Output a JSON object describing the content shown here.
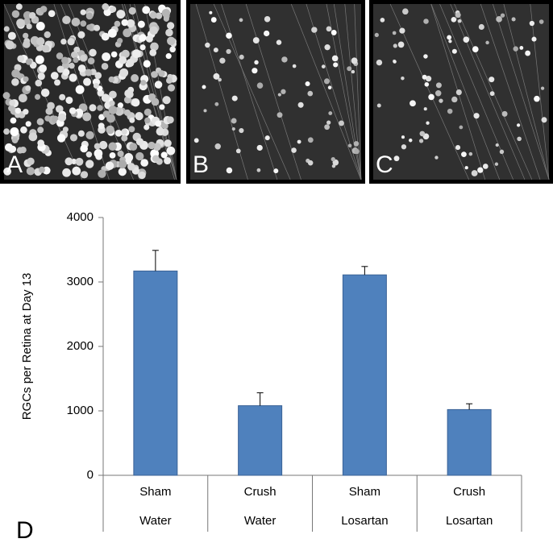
{
  "panels": {
    "labels": [
      "A",
      "B",
      "C"
    ]
  },
  "chart_data": {
    "type": "bar",
    "panel_label": "D",
    "ylabel": "RGCs per Retina at Day 13",
    "categories": [
      "Sham",
      "Crush",
      "Sham",
      "Crush"
    ],
    "subcategories": [
      "Water",
      "Water",
      "Losartan",
      "Losartan"
    ],
    "values": [
      3170,
      1080,
      3110,
      1020
    ],
    "errors": [
      320,
      200,
      130,
      90
    ],
    "color": "#4f81bd",
    "ylim": [
      0,
      4000
    ],
    "yticks": [
      0,
      1000,
      2000,
      3000,
      4000
    ]
  }
}
